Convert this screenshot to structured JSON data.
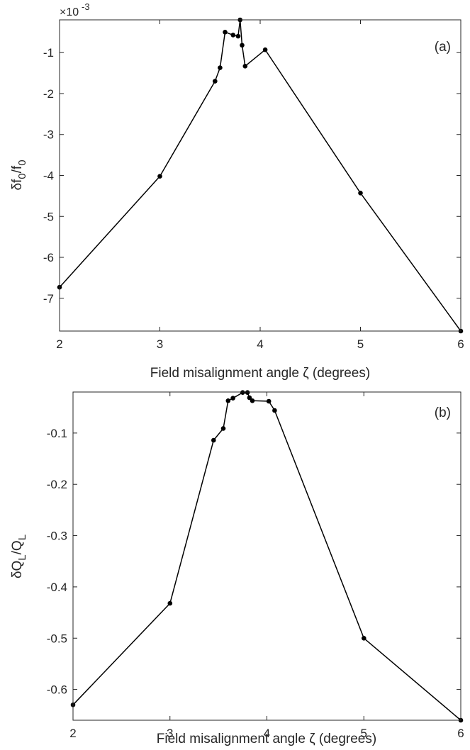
{
  "chart_data": [
    {
      "type": "line",
      "panel_label": "(a)",
      "xlabel": "Field misalignment angle ζ (degrees)",
      "ylabel_main": "δf",
      "ylabel_sub1": "0",
      "ylabel_mid": "/f",
      "ylabel_sub2": "0",
      "y_exponent_base": "×10",
      "y_exponent_power": "-3",
      "xlim": [
        2,
        6
      ],
      "ylim": [
        -7.8,
        -0.2
      ],
      "xticks": [
        2,
        3,
        4,
        5,
        6
      ],
      "yticks": [
        -7,
        -6,
        -5,
        -4,
        -3,
        -2,
        -1
      ],
      "x": [
        2,
        3,
        3.55,
        3.6,
        3.65,
        3.73,
        3.78,
        3.8,
        3.82,
        3.85,
        4.05,
        5,
        6
      ],
      "y": [
        -6.73,
        -4.02,
        -1.7,
        -1.37,
        -0.5,
        -0.57,
        -0.6,
        -0.2,
        -0.82,
        -1.33,
        -0.93,
        -4.43,
        -7.8
      ],
      "line_color": "#000000",
      "grid": false
    },
    {
      "type": "line",
      "panel_label": "(b)",
      "xlabel": "Field misalignment angle ζ (degrees)",
      "ylabel_main": "δQ",
      "ylabel_sub1": "L",
      "ylabel_mid": "/Q",
      "ylabel_sub2": "L",
      "xlim": [
        2,
        6
      ],
      "ylim": [
        -0.66,
        -0.02
      ],
      "xticks": [
        2,
        3,
        4,
        5,
        6
      ],
      "yticks": [
        -0.6,
        -0.5,
        -0.4,
        -0.3,
        -0.2,
        -0.1
      ],
      "x": [
        2,
        3,
        3.45,
        3.55,
        3.6,
        3.65,
        3.75,
        3.8,
        3.82,
        3.85,
        4.02,
        4.08,
        5,
        6
      ],
      "y": [
        -0.63,
        -0.432,
        -0.114,
        -0.091,
        -0.037,
        -0.032,
        -0.021,
        -0.021,
        -0.031,
        -0.037,
        -0.038,
        -0.056,
        -0.5,
        -0.66
      ],
      "line_color": "#000000",
      "grid": false
    }
  ]
}
